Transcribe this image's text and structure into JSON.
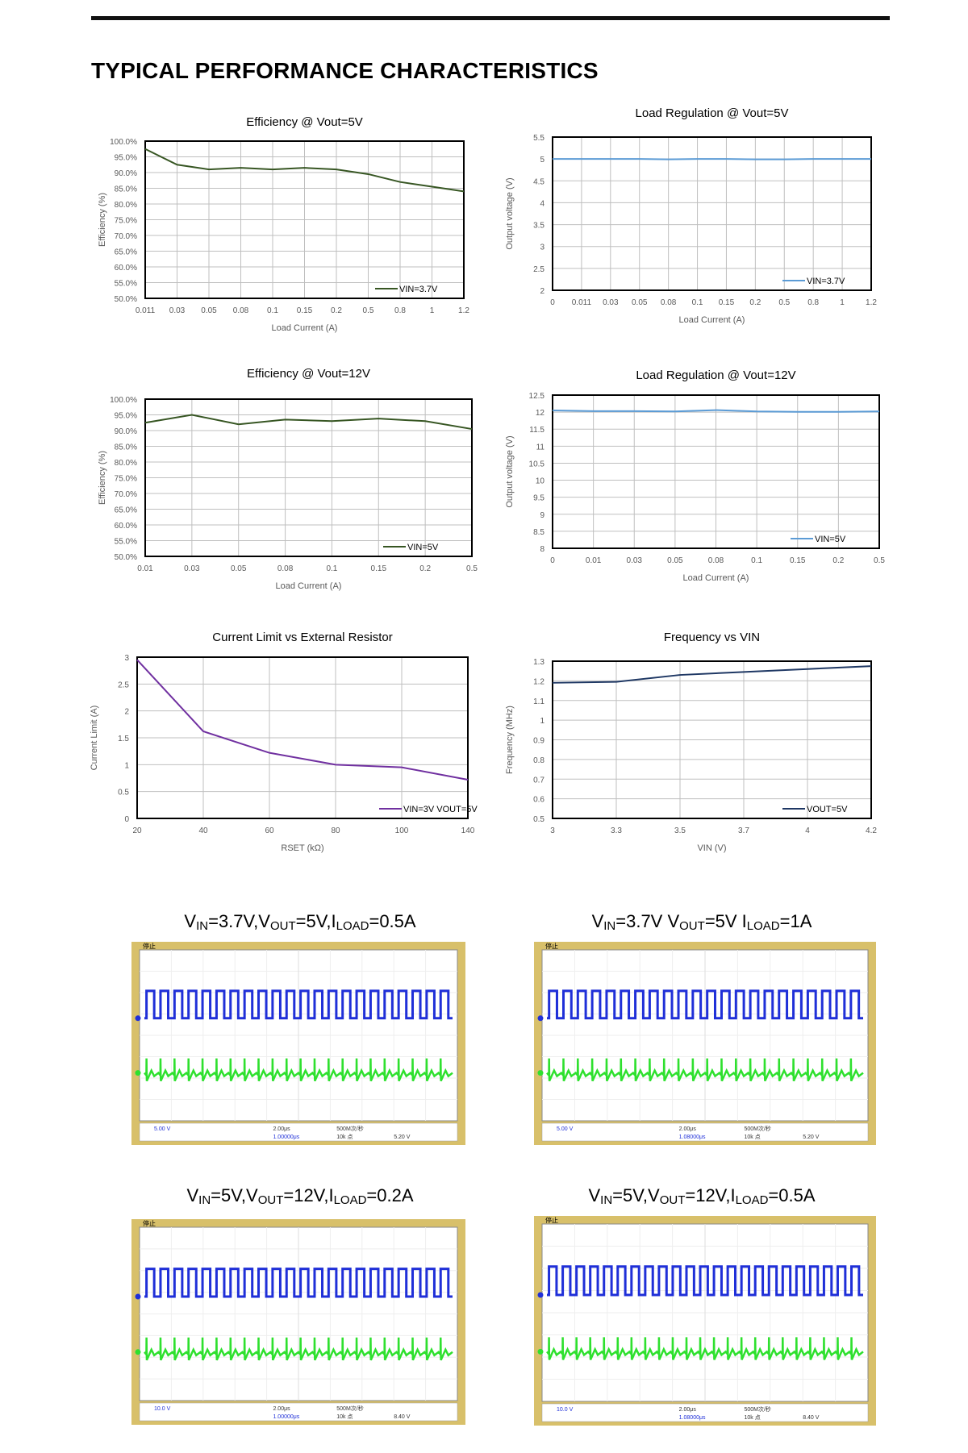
{
  "heading": "TYPICAL PERFORMANCE CHARACTERISTICS",
  "chart_data": [
    {
      "type": "line",
      "title": "Efficiency  @  Vout=5V",
      "xlabel": "Load Current (A)",
      "ylabel": "Efficiency (%)",
      "categories": [
        "0.011",
        "0.03",
        "0.05",
        "0.08",
        "0.1",
        "0.15",
        "0.2",
        "0.5",
        "0.8",
        "1",
        "1.2"
      ],
      "yticks": [
        "50.0%",
        "55.0%",
        "60.0%",
        "65.0%",
        "70.0%",
        "75.0%",
        "80.0%",
        "85.0%",
        "90.0%",
        "95.0%",
        "100.0%"
      ],
      "ylim": [
        50,
        100
      ],
      "series": [
        {
          "name": "VIN=3.7V",
          "color": "#375623",
          "values": [
            97.5,
            92.5,
            91.0,
            91.5,
            91.0,
            91.5,
            91.0,
            89.5,
            87.0,
            85.5,
            84.0
          ]
        }
      ],
      "legend": "bottom-right"
    },
    {
      "type": "line",
      "title": "Load Regulation @ Vout=5V",
      "xlabel": "Load Current (A)",
      "ylabel": "Output voltage (V)",
      "categories": [
        "0",
        "0.011",
        "0.03",
        "0.05",
        "0.08",
        "0.1",
        "0.15",
        "0.2",
        "0.5",
        "0.8",
        "1",
        "1.2"
      ],
      "yticks": [
        "2",
        "2.5",
        "3",
        "3.5",
        "4",
        "4.5",
        "5",
        "5.5"
      ],
      "ylim": [
        2,
        5.5
      ],
      "series": [
        {
          "name": "VIN=3.7V",
          "color": "#5b9bd5",
          "values": [
            5.0,
            5.0,
            5.0,
            5.0,
            4.99,
            5.0,
            5.0,
            4.99,
            4.99,
            5.0,
            5.0,
            5.0
          ]
        }
      ],
      "legend": "bottom-right"
    },
    {
      "type": "line",
      "title": "Efficiency  @  Vout=12V",
      "xlabel": "Load Current (A)",
      "ylabel": "Efficiency (%)",
      "categories": [
        "0.01",
        "0.03",
        "0.05",
        "0.08",
        "0.1",
        "0.15",
        "0.2",
        "0.5"
      ],
      "yticks": [
        "50.0%",
        "55.0%",
        "60.0%",
        "65.0%",
        "70.0%",
        "75.0%",
        "80.0%",
        "85.0%",
        "90.0%",
        "95.0%",
        "100.0%"
      ],
      "ylim": [
        50,
        100
      ],
      "series": [
        {
          "name": "VIN=5V",
          "color": "#375623",
          "values": [
            92.5,
            95.0,
            92.0,
            93.5,
            93.0,
            93.8,
            93.0,
            90.5
          ]
        }
      ],
      "legend": "bottom-right"
    },
    {
      "type": "line",
      "title": "Load Regulation @ Vout=12V",
      "xlabel": "Load Current (A)",
      "ylabel": "Output voltage (V)",
      "categories": [
        "0",
        "0.01",
        "0.03",
        "0.05",
        "0.08",
        "0.1",
        "0.15",
        "0.2",
        "0.5"
      ],
      "yticks": [
        "8",
        "8.5",
        "9",
        "9.5",
        "10",
        "10.5",
        "11",
        "11.5",
        "12",
        "12.5"
      ],
      "ylim": [
        8,
        12.5
      ],
      "series": [
        {
          "name": "VIN=5V",
          "color": "#5b9bd5",
          "values": [
            12.05,
            12.03,
            12.03,
            12.02,
            12.06,
            12.02,
            12.01,
            12.01,
            12.02
          ]
        }
      ],
      "legend": "bottom-right"
    },
    {
      "type": "line",
      "title": "Current Limit vs External Resistor",
      "xlabel": "RSET (kΩ)",
      "ylabel": "Current Limit (A)",
      "categories": [
        "20",
        "40",
        "60",
        "80",
        "100",
        "140"
      ],
      "yticks": [
        "0",
        "0.5",
        "1",
        "1.5",
        "2",
        "2.5",
        "3"
      ],
      "ylim": [
        0,
        3
      ],
      "series": [
        {
          "name": "VIN=3V  VOUT=5V",
          "color": "#7030a0",
          "values": [
            2.95,
            1.62,
            1.22,
            1.0,
            0.95,
            0.72
          ]
        }
      ],
      "legend": "bottom-right"
    },
    {
      "type": "line",
      "title": "Frequency vs VIN",
      "xlabel": "VIN (V)",
      "ylabel": "Frequency (MHz)",
      "categories": [
        "3",
        "3.3",
        "3.5",
        "3.7",
        "4",
        "4.2"
      ],
      "yticks": [
        "0.5",
        "0.6",
        "0.7",
        "0.8",
        "0.9",
        "1",
        "1.1",
        "1.2",
        "1.3"
      ],
      "ylim": [
        0.5,
        1.3
      ],
      "series": [
        {
          "name": "VOUT=5V",
          "color": "#1f3864",
          "values": [
            1.19,
            1.195,
            1.23,
            1.245,
            1.26,
            1.275
          ]
        }
      ],
      "legend": "bottom-right"
    }
  ],
  "scopes": [
    {
      "title_parts": [
        "V",
        "IN",
        "=3.7V,V",
        "OUT",
        "=5V,I",
        "LOAD",
        "=0.5A"
      ],
      "status": "停止",
      "ch1_scale": "5.00 V",
      "time_scale": "2.00μs",
      "sample": "500M次/秒",
      "points": "10k 点",
      "trig": "5.20 V",
      "delay": "1.00000μs"
    },
    {
      "title_parts": [
        "V",
        "IN",
        "=3.7V V",
        "OUT",
        "=5V I",
        "LOAD",
        "=1A"
      ],
      "status": "停止",
      "ch1_scale": "5.00 V",
      "time_scale": "2.00μs",
      "sample": "500M次/秒",
      "points": "10k 点",
      "trig": "5.20 V",
      "delay": "1.08000μs"
    },
    {
      "title_parts": [
        "V",
        "IN",
        "=5V,V",
        "OUT",
        "=12V,I",
        "LOAD",
        "=0.2A"
      ],
      "status": "停止",
      "ch1_scale": "10.0 V",
      "time_scale": "2.00μs",
      "sample": "500M次/秒",
      "points": "10k 点",
      "trig": "8.40 V",
      "delay": "1.00000μs"
    },
    {
      "title_parts": [
        "V",
        "IN",
        "=5V,V",
        "OUT",
        "=12V,I",
        "LOAD",
        "=0.5A"
      ],
      "status": "停止",
      "ch1_scale": "10.0 V",
      "time_scale": "2.00μs",
      "sample": "500M次/秒",
      "points": "10k 点",
      "trig": "8.40 V",
      "delay": "1.08000μs"
    }
  ]
}
